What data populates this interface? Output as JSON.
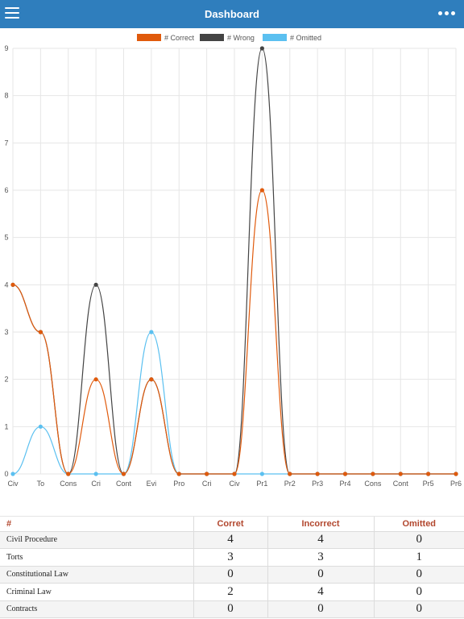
{
  "header": {
    "title": "Dashboard",
    "menu_icon": "hamburger-menu-icon",
    "more_icon": "more-options-icon"
  },
  "colors": {
    "header": "#2f7ebd",
    "correct": "#e05a0c",
    "wrong": "#444444",
    "omitted": "#5bc0f0",
    "table_header": "#b2472e"
  },
  "chart_data": {
    "type": "line",
    "categories": [
      "Civ",
      "To",
      "Cons",
      "Cri",
      "Cont",
      "Evi",
      "Pro",
      "Cri",
      "Civ",
      "Pr1",
      "Pr2",
      "Pr3",
      "Pr4",
      "Cons",
      "Cont",
      "Pr5",
      "Pr6"
    ],
    "series": [
      {
        "name": "# Correct",
        "values": [
          4,
          3,
          0,
          2,
          0,
          2,
          0,
          0,
          0,
          6,
          0,
          0,
          0,
          0,
          0,
          0,
          0
        ]
      },
      {
        "name": "# Wrong",
        "values": [
          4,
          3,
          0,
          4,
          0,
          2,
          0,
          0,
          0,
          9,
          0,
          0,
          0,
          0,
          0,
          0,
          0
        ]
      },
      {
        "name": "# Omitted",
        "values": [
          0,
          1,
          0,
          0,
          0,
          3,
          0,
          0,
          0,
          0,
          0,
          0,
          0,
          0,
          0,
          0,
          0
        ]
      }
    ],
    "ylim": [
      0,
      9
    ],
    "yticks": [
      "0",
      "1",
      "2",
      "3",
      "4",
      "5",
      "6",
      "7",
      "8",
      "9"
    ],
    "grid": true,
    "legend": "top-center"
  },
  "table": {
    "headers": [
      "#",
      "Corret",
      "Incorrect",
      "Omitted"
    ],
    "rows": [
      {
        "name": "Civil Procedure",
        "correct": "4",
        "incorrect": "4",
        "omitted": "0"
      },
      {
        "name": "Torts",
        "correct": "3",
        "incorrect": "3",
        "omitted": "1"
      },
      {
        "name": "Constitutional Law",
        "correct": "0",
        "incorrect": "0",
        "omitted": "0"
      },
      {
        "name": "Criminal Law",
        "correct": "2",
        "incorrect": "4",
        "omitted": "0"
      },
      {
        "name": "Contracts",
        "correct": "0",
        "incorrect": "0",
        "omitted": "0"
      }
    ]
  }
}
